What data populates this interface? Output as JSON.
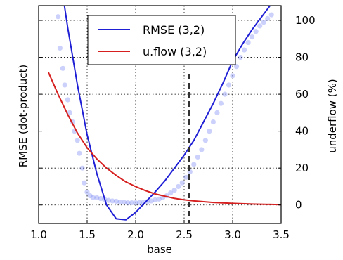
{
  "chart_data": {
    "type": "line",
    "xlabel": "base",
    "ylabel_left": "RMSE (dot-product)",
    "ylabel_right": "underflow (%)",
    "xlim": [
      1.0,
      3.5
    ],
    "xticks": [
      "1.0",
      "1.5",
      "2.0",
      "2.5",
      "3.0",
      "3.5"
    ],
    "ylim_right": [
      -10,
      108
    ],
    "yticks_right": [
      "0",
      "20",
      "40",
      "60",
      "80",
      "100"
    ],
    "left_axis_ticklabels_shown": false,
    "grid": true,
    "grid_style": "dotted",
    "legend_position": "top-center",
    "vline_x": 2.55,
    "vline_style": "dashed",
    "series": [
      {
        "name": "RMSE (3,2)",
        "color": "#1f1fd6",
        "x": [
          1.0,
          1.1,
          1.2,
          1.3,
          1.4,
          1.5,
          1.6,
          1.7,
          1.8,
          1.9,
          2.0,
          2.1,
          2.2,
          2.3,
          2.4,
          2.5,
          2.6,
          2.7,
          2.8,
          2.9,
          3.0,
          3.1,
          3.2,
          3.3,
          3.4,
          3.5
        ],
        "y": [
          210,
          170,
          131,
          96,
          65,
          38,
          17,
          0,
          -7.5,
          -8,
          -4,
          1.5,
          7,
          13,
          20,
          27,
          35,
          45,
          55,
          66,
          78,
          87,
          95,
          102,
          109,
          115
        ]
      },
      {
        "name": "u.flow (3,2)",
        "color": "#d62020",
        "x": [
          1.1,
          1.2,
          1.3,
          1.4,
          1.5,
          1.6,
          1.7,
          1.8,
          1.9,
          2.0,
          2.1,
          2.2,
          2.3,
          2.4,
          2.5,
          2.6,
          2.8,
          3.0,
          3.2,
          3.4,
          3.5
        ],
        "y": [
          72,
          60,
          49,
          39,
          31,
          25,
          20,
          16,
          12.5,
          10,
          7.8,
          6,
          4.8,
          3.6,
          2.8,
          2.2,
          1.4,
          0.9,
          0.5,
          0.3,
          0.2
        ]
      },
      {
        "type": "scatter",
        "color": "#6a7bf0",
        "x": [
          1.2,
          1.22,
          1.25,
          1.27,
          1.3,
          1.32,
          1.35,
          1.37,
          1.4,
          1.42,
          1.45,
          1.47,
          1.5,
          1.53,
          1.56,
          1.6,
          1.64,
          1.68,
          1.72,
          1.76,
          1.8,
          1.84,
          1.88,
          1.92,
          1.96,
          2.0,
          2.04,
          2.08,
          2.12,
          2.16,
          2.2,
          2.24,
          2.28,
          2.32,
          2.36,
          2.4,
          2.44,
          2.48,
          2.52,
          2.56,
          2.6,
          2.64,
          2.68,
          2.72,
          2.76,
          2.8,
          2.84,
          2.88,
          2.92,
          2.96,
          3.0,
          3.04,
          3.08,
          3.12,
          3.16,
          3.2,
          3.24,
          3.28,
          3.32,
          3.36,
          3.4
        ],
        "y": [
          102,
          85,
          74,
          65,
          57,
          50,
          45,
          40,
          35,
          28,
          20,
          12,
          7,
          5,
          4,
          4,
          3.5,
          3,
          2.5,
          2.2,
          2,
          1.5,
          1.5,
          1.2,
          1.2,
          1.2,
          1.3,
          1.5,
          1.8,
          2.2,
          2.8,
          3.2,
          4,
          5,
          6.5,
          8,
          10,
          12,
          15,
          18,
          22,
          26,
          30,
          35,
          40,
          45,
          50,
          55,
          60,
          65,
          70,
          75,
          80,
          84,
          88,
          91,
          94,
          97,
          99,
          101,
          103
        ]
      }
    ]
  }
}
